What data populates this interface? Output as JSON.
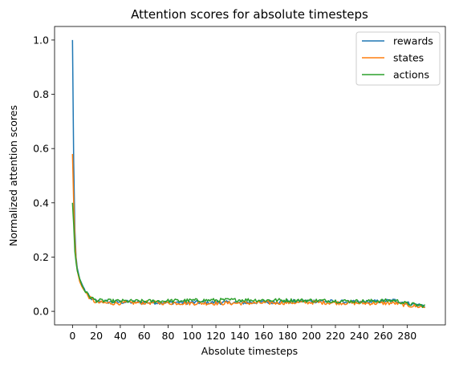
{
  "chart_data": {
    "type": "line",
    "title": "Attention scores for absolute timesteps",
    "xlabel": "Absolute timesteps",
    "ylabel": "Normalized attention scores",
    "xlim": [
      -15,
      312
    ],
    "ylim": [
      -0.05,
      1.05
    ],
    "xticks": [
      0,
      20,
      40,
      60,
      80,
      100,
      120,
      140,
      160,
      180,
      200,
      220,
      240,
      260,
      280
    ],
    "yticks": [
      0.0,
      0.2,
      0.4,
      0.6,
      0.8,
      1.0
    ],
    "ytick_labels": [
      "0.0",
      "0.2",
      "0.4",
      "0.6",
      "0.8",
      "1.0"
    ],
    "grid": false,
    "legend_position": "top-right",
    "series": [
      {
        "name": "rewards",
        "color": "#1f77b4",
        "keypoints": [
          [
            0,
            1.0
          ],
          [
            1,
            0.55
          ],
          [
            2,
            0.3
          ],
          [
            3,
            0.2
          ],
          [
            4,
            0.16
          ],
          [
            6,
            0.12
          ],
          [
            8,
            0.1
          ],
          [
            10,
            0.08
          ],
          [
            12,
            0.065
          ],
          [
            15,
            0.05
          ],
          [
            18,
            0.042
          ],
          [
            20,
            0.038
          ],
          [
            30,
            0.035
          ],
          [
            60,
            0.033
          ],
          [
            100,
            0.033
          ],
          [
            140,
            0.032
          ],
          [
            200,
            0.038
          ],
          [
            240,
            0.033
          ],
          [
            270,
            0.04
          ],
          [
            280,
            0.03
          ],
          [
            295,
            0.02
          ]
        ]
      },
      {
        "name": "states",
        "color": "#ff7f0e",
        "keypoints": [
          [
            0,
            0.58
          ],
          [
            1,
            0.4
          ],
          [
            2,
            0.26
          ],
          [
            3,
            0.19
          ],
          [
            4,
            0.15
          ],
          [
            6,
            0.11
          ],
          [
            8,
            0.09
          ],
          [
            10,
            0.075
          ],
          [
            12,
            0.062
          ],
          [
            15,
            0.048
          ],
          [
            18,
            0.038
          ],
          [
            20,
            0.033
          ],
          [
            30,
            0.03
          ],
          [
            60,
            0.032
          ],
          [
            100,
            0.03
          ],
          [
            140,
            0.03
          ],
          [
            200,
            0.033
          ],
          [
            240,
            0.03
          ],
          [
            270,
            0.03
          ],
          [
            280,
            0.022
          ],
          [
            295,
            0.015
          ]
        ]
      },
      {
        "name": "actions",
        "color": "#2ca02c",
        "keypoints": [
          [
            0,
            0.4
          ],
          [
            1,
            0.32
          ],
          [
            2,
            0.22
          ],
          [
            3,
            0.18
          ],
          [
            4,
            0.15
          ],
          [
            6,
            0.12
          ],
          [
            8,
            0.095
          ],
          [
            10,
            0.08
          ],
          [
            12,
            0.066
          ],
          [
            15,
            0.052
          ],
          [
            18,
            0.044
          ],
          [
            20,
            0.04
          ],
          [
            30,
            0.038
          ],
          [
            60,
            0.037
          ],
          [
            100,
            0.04
          ],
          [
            140,
            0.042
          ],
          [
            200,
            0.04
          ],
          [
            240,
            0.037
          ],
          [
            270,
            0.04
          ],
          [
            280,
            0.028
          ],
          [
            295,
            0.02
          ]
        ]
      }
    ]
  }
}
